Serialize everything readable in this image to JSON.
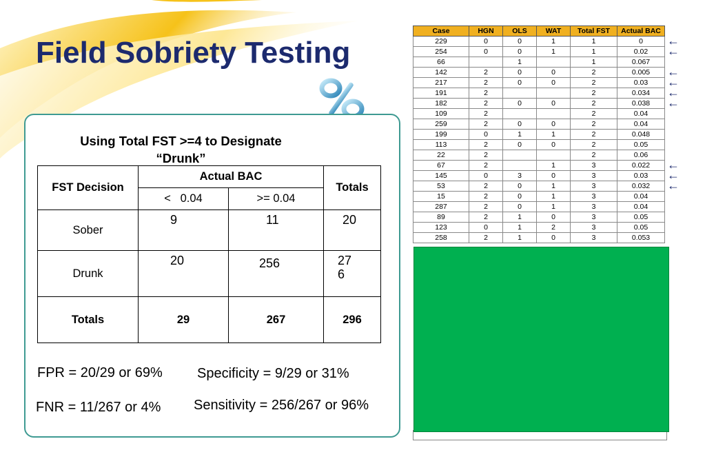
{
  "slide": {
    "title": "Field Sobriety Testing",
    "colors": {
      "title": "#1c2a6e",
      "panel_border": "#3e9a92",
      "grid_header": "#f0b020",
      "mask_box": "#00b050"
    }
  },
  "contingency": {
    "heading_line1": "Using Total FST >=4 to Designate",
    "heading_line2": "“Drunk”",
    "fst_decision": "FST Decision",
    "actual_bac": "Actual BAC",
    "totals": "Totals",
    "col_lt": "<   0.04",
    "col_ge": ">= 0.04",
    "rows": [
      {
        "label": "Sober",
        "lt": "9",
        "ge": "11",
        "total": "20"
      },
      {
        "label": "Drunk",
        "lt": "20",
        "ge": "256",
        "total_line1": "27",
        "total_line2": "6"
      }
    ],
    "totals_row": {
      "label": "Totals",
      "lt": "29",
      "ge": "267",
      "total": "296"
    }
  },
  "formulas": {
    "fpr": "FPR =   20/29 or 69%",
    "specificity": "Specificity = 9/29 or 31%",
    "fnr": "FNR = 11/267 or 4%",
    "sensitivity": "Sensitivity = 256/267 or 96%"
  },
  "grid": {
    "headers": [
      "Case",
      "HGN",
      "OLS",
      "WAT",
      "Total FST",
      "Actual BAC"
    ],
    "rows": [
      [
        "229",
        "0",
        "0",
        "1",
        "1",
        "0"
      ],
      [
        "254",
        "0",
        "0",
        "1",
        "1",
        "0.02"
      ],
      [
        "66",
        "",
        "1",
        "",
        "1",
        "0.067"
      ],
      [
        "142",
        "2",
        "0",
        "0",
        "2",
        "0.005"
      ],
      [
        "217",
        "2",
        "0",
        "0",
        "2",
        "0.03"
      ],
      [
        "191",
        "2",
        "",
        "",
        "2",
        "0.034"
      ],
      [
        "182",
        "2",
        "0",
        "0",
        "2",
        "0.038"
      ],
      [
        "109",
        "2",
        "",
        "",
        "2",
        "0.04"
      ],
      [
        "259",
        "2",
        "0",
        "0",
        "2",
        "0.04"
      ],
      [
        "199",
        "0",
        "1",
        "1",
        "2",
        "0.048"
      ],
      [
        "113",
        "2",
        "0",
        "0",
        "2",
        "0.05"
      ],
      [
        "22",
        "2",
        "",
        "",
        "2",
        "0.06"
      ],
      [
        "67",
        "2",
        "",
        "1",
        "3",
        "0.022"
      ],
      [
        "145",
        "0",
        "3",
        "0",
        "3",
        "0.03"
      ],
      [
        "53",
        "2",
        "0",
        "1",
        "3",
        "0.032"
      ],
      [
        "15",
        "2",
        "0",
        "1",
        "3",
        "0.04"
      ],
      [
        "287",
        "2",
        "0",
        "1",
        "3",
        "0.04"
      ],
      [
        "89",
        "2",
        "1",
        "0",
        "3",
        "0.05"
      ],
      [
        "123",
        "0",
        "1",
        "2",
        "3",
        "0.05"
      ],
      [
        "258",
        "2",
        "1",
        "0",
        "3",
        "0.053"
      ]
    ],
    "arrow_glyph": "←",
    "arrow_rows": [
      0,
      1,
      3,
      4,
      5,
      6,
      12,
      13,
      14
    ]
  }
}
